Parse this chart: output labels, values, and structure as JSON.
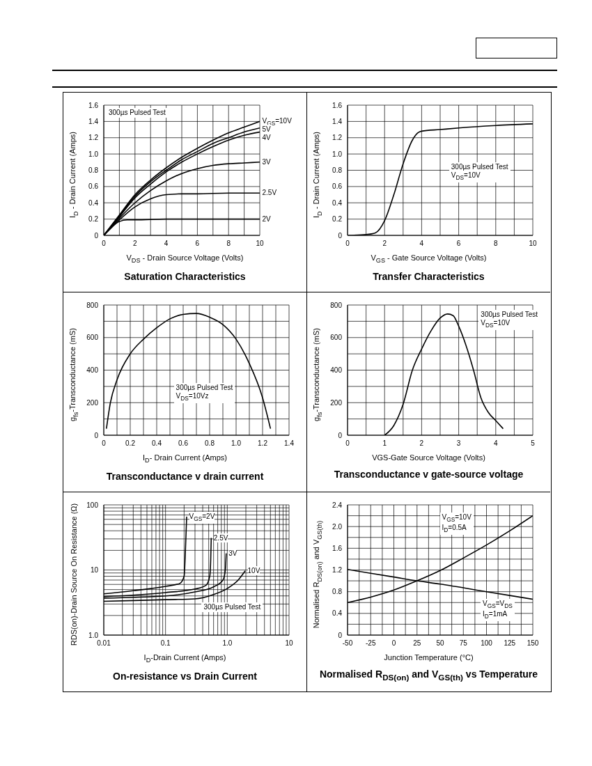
{
  "chart_data": [
    {
      "type": "line",
      "title": "Saturation Characteristics",
      "xlabel": "V$_{DS}$ - Drain Source Voltage (Volts)",
      "ylabel": "I$_{D}$ - Drain Current (Amps)",
      "annotations": [
        "300µs Pulsed Test"
      ],
      "grid": true,
      "xlim": [
        0,
        10
      ],
      "xticks": [
        0,
        {
          "value": 1,
          "label": null
        },
        2,
        {
          "value": 3,
          "label": null
        },
        4,
        {
          "value": 5,
          "label": null
        },
        6,
        {
          "value": 7,
          "label": null
        },
        8,
        {
          "value": 9,
          "label": null
        },
        10
      ],
      "ylim": [
        0,
        1.6
      ],
      "yticks": [
        0,
        0.2,
        0.4,
        0.6,
        0.8,
        {
          "value": 1,
          "label": "1.0"
        },
        1.2,
        1.4,
        1.6
      ],
      "series": [
        {
          "name": "V$_{GS}$=10V",
          "color": "#000000",
          "x": [
            0,
            1,
            2,
            3,
            4,
            5,
            6,
            7,
            8,
            9,
            10
          ],
          "values": [
            0,
            0.25,
            0.5,
            0.68,
            0.83,
            0.96,
            1.07,
            1.17,
            1.26,
            1.33,
            1.4
          ]
        },
        {
          "name": "5V",
          "color": "#000000",
          "x": [
            0,
            1,
            2,
            3,
            4,
            5,
            6,
            7,
            8,
            9,
            10
          ],
          "values": [
            0,
            0.24,
            0.48,
            0.66,
            0.8,
            0.93,
            1.03,
            1.13,
            1.2,
            1.27,
            1.32
          ]
        },
        {
          "name": "4V",
          "color": "#000000",
          "x": [
            0,
            1,
            2,
            3,
            4,
            5,
            6,
            7,
            8,
            9,
            10
          ],
          "values": [
            0,
            0.23,
            0.46,
            0.63,
            0.78,
            0.9,
            1.0,
            1.09,
            1.17,
            1.23,
            1.27
          ]
        },
        {
          "name": "3V",
          "color": "#000000",
          "x": [
            0,
            1,
            2,
            3,
            4,
            5,
            6,
            7,
            8,
            9,
            10
          ],
          "values": [
            0,
            0.21,
            0.4,
            0.55,
            0.67,
            0.76,
            0.82,
            0.86,
            0.88,
            0.89,
            0.9
          ]
        },
        {
          "name": "2.5V",
          "color": "#000000",
          "x": [
            0,
            1,
            2,
            3,
            4,
            5,
            6,
            8,
            10
          ],
          "values": [
            0,
            0.19,
            0.35,
            0.45,
            0.5,
            0.51,
            0.51,
            0.52,
            0.52
          ]
        },
        {
          "name": "2V",
          "color": "#000000",
          "x": [
            0,
            0.5,
            1,
            1.5,
            2,
            4,
            10
          ],
          "values": [
            0,
            0.1,
            0.17,
            0.19,
            0.19,
            0.2,
            0.2
          ]
        }
      ]
    },
    {
      "type": "line",
      "title": "Transfer Characteristics",
      "xlabel": "V$_{GS}$ - Gate Source Voltage (Volts)",
      "ylabel": "I$_{D}$ - Drain Current (Amps)",
      "annotations": [
        "300µs Pulsed Test",
        "V$_{DS}$=10V"
      ],
      "grid": true,
      "xlim": [
        0,
        10
      ],
      "xticks": [
        0,
        {
          "value": 1,
          "label": null
        },
        2,
        {
          "value": 3,
          "label": null
        },
        4,
        {
          "value": 5,
          "label": null
        },
        6,
        {
          "value": 7,
          "label": null
        },
        8,
        {
          "value": 9,
          "label": null
        },
        10
      ],
      "ylim": [
        0,
        1.6
      ],
      "yticks": [
        0,
        0.2,
        0.4,
        0.6,
        0.8,
        {
          "value": 1,
          "label": "1.0"
        },
        1.2,
        1.4,
        1.6
      ],
      "series": [
        {
          "color": "#000000",
          "x": [
            0,
            1,
            1.5,
            2,
            2.5,
            3,
            3.5,
            3.8,
            4,
            5,
            6,
            8,
            10
          ],
          "values": [
            0,
            0.01,
            0.03,
            0.18,
            0.5,
            0.88,
            1.17,
            1.26,
            1.28,
            1.3,
            1.32,
            1.35,
            1.37
          ]
        }
      ]
    },
    {
      "type": "line",
      "title": "Transconductance v drain current",
      "xlabel": "I$_{D}$- Drain Current (Amps)",
      "ylabel": "g$_{fs}$-Transconductance (mS)",
      "annotations": [
        "300µs Pulsed Test",
        "V$_{DS}$=10Vz"
      ],
      "grid": true,
      "xlim": [
        0,
        1.4
      ],
      "xticks": [
        0,
        {
          "value": 0.1,
          "label": null
        },
        0.2,
        {
          "value": 0.3,
          "label": null
        },
        0.4,
        {
          "value": 0.5,
          "label": null
        },
        0.6,
        {
          "value": 0.7,
          "label": null
        },
        0.8,
        {
          "value": 0.9,
          "label": null
        },
        {
          "value": 1,
          "label": "1.0"
        },
        {
          "value": 1.1,
          "label": null
        },
        1.2,
        {
          "value": 1.3,
          "label": null
        },
        1.4
      ],
      "ylim": [
        0,
        800
      ],
      "yticks": [
        0,
        {
          "value": 100,
          "label": null
        },
        200,
        {
          "value": 300,
          "label": null
        },
        400,
        {
          "value": 500,
          "label": null
        },
        600,
        {
          "value": 700,
          "label": null
        },
        800
      ],
      "series": [
        {
          "color": "#000000",
          "x": [
            0.02,
            0.05,
            0.1,
            0.2,
            0.3,
            0.4,
            0.5,
            0.6,
            0.7,
            0.8,
            0.9,
            1.0,
            1.1,
            1.2,
            1.26
          ],
          "values": [
            40,
            200,
            340,
            500,
            590,
            660,
            715,
            742,
            748,
            725,
            680,
            590,
            440,
            230,
            40
          ]
        }
      ]
    },
    {
      "type": "line",
      "title": "Transconductance v gate-source voltage",
      "xlabel": "VGS-Gate Source Voltage (Volts)",
      "ylabel": "g$_{fs}$-Transconductance (mS)",
      "annotations": [
        "300µs Pulsed Test",
        "V$_{DS}$=10V"
      ],
      "grid": true,
      "xlim": [
        0,
        5
      ],
      "xticks": [
        0,
        {
          "value": 0.5,
          "label": null
        },
        1,
        {
          "value": 1.5,
          "label": null
        },
        2,
        {
          "value": 2.5,
          "label": null
        },
        3,
        {
          "value": 3.5,
          "label": null
        },
        4,
        {
          "value": 4.5,
          "label": null
        },
        5
      ],
      "ylim": [
        0,
        800
      ],
      "yticks": [
        0,
        {
          "value": 100,
          "label": null
        },
        200,
        {
          "value": 300,
          "label": null
        },
        400,
        {
          "value": 500,
          "label": null
        },
        600,
        {
          "value": 700,
          "label": null
        },
        800
      ],
      "series": [
        {
          "color": "#000000",
          "x": [
            1,
            1.25,
            1.5,
            1.75,
            2,
            2.25,
            2.5,
            2.7,
            2.85,
            3,
            3.2,
            3.4,
            3.6,
            3.8,
            4,
            4.2
          ],
          "values": [
            0,
            60,
            190,
            400,
            530,
            640,
            720,
            745,
            735,
            670,
            550,
            400,
            230,
            140,
            90,
            40
          ]
        }
      ]
    },
    {
      "type": "line",
      "title": "On-resistance vs Drain Current",
      "xlabel": "I$_{D}$-Drain Current (Amps)",
      "ylabel": "RDS(on)-Drain Source On Resistance  (Ω)",
      "annotations": [
        "300µs Pulsed Test"
      ],
      "grid": true,
      "log": "xy",
      "xlim": [
        0.01,
        10
      ],
      "xticks": [
        0.01,
        {
          "value": 0.02,
          "label": null
        },
        {
          "value": 0.03,
          "label": null
        },
        {
          "value": 0.04,
          "label": null
        },
        {
          "value": 0.05,
          "label": null
        },
        {
          "value": 0.06,
          "label": null
        },
        {
          "value": 0.07,
          "label": null
        },
        {
          "value": 0.08,
          "label": null
        },
        {
          "value": 0.09,
          "label": null
        },
        0.1,
        {
          "value": 0.2,
          "label": null
        },
        {
          "value": 0.3,
          "label": null
        },
        {
          "value": 0.4,
          "label": null
        },
        {
          "value": 0.5,
          "label": null
        },
        {
          "value": 0.6,
          "label": null
        },
        {
          "value": 0.7,
          "label": null
        },
        {
          "value": 0.8,
          "label": null
        },
        {
          "value": 0.9,
          "label": null
        },
        {
          "value": 1,
          "label": "1.0"
        },
        {
          "value": 2,
          "label": null
        },
        {
          "value": 3,
          "label": null
        },
        {
          "value": 4,
          "label": null
        },
        {
          "value": 5,
          "label": null
        },
        {
          "value": 6,
          "label": null
        },
        {
          "value": 7,
          "label": null
        },
        {
          "value": 8,
          "label": null
        },
        {
          "value": 9,
          "label": null
        },
        10
      ],
      "ylim": [
        1,
        100
      ],
      "yticks": [
        {
          "value": 1,
          "label": "1.0"
        },
        {
          "value": 2,
          "label": null
        },
        {
          "value": 3,
          "label": null
        },
        {
          "value": 4,
          "label": null
        },
        {
          "value": 5,
          "label": null
        },
        {
          "value": 6,
          "label": null
        },
        {
          "value": 7,
          "label": null
        },
        {
          "value": 8,
          "label": null
        },
        {
          "value": 9,
          "label": null
        },
        10,
        {
          "value": 20,
          "label": null
        },
        {
          "value": 30,
          "label": null
        },
        {
          "value": 40,
          "label": null
        },
        {
          "value": 50,
          "label": null
        },
        {
          "value": 60,
          "label": null
        },
        {
          "value": 70,
          "label": null
        },
        {
          "value": 80,
          "label": null
        },
        {
          "value": 90,
          "label": null
        },
        100
      ],
      "series": [
        {
          "name": "V$_{GS}$=2V",
          "color": "#000000",
          "x": [
            0.01,
            0.03,
            0.1,
            0.17,
            0.2,
            0.21,
            0.22
          ],
          "values": [
            4.3,
            4.8,
            5.6,
            6.2,
            8,
            20,
            66
          ]
        },
        {
          "name": "2.5V",
          "color": "#000000",
          "x": [
            0.01,
            0.1,
            0.3,
            0.45,
            0.52,
            0.54,
            0.55
          ],
          "values": [
            3.9,
            4.5,
            5.1,
            5.8,
            8,
            15,
            31
          ]
        },
        {
          "name": "3V",
          "color": "#000000",
          "x": [
            0.01,
            0.1,
            0.3,
            0.6,
            0.85,
            0.93,
            0.96
          ],
          "values": [
            3.7,
            4.0,
            4.6,
            5.5,
            7,
            10,
            18
          ]
        },
        {
          "name": "10V",
          "color": "#000000",
          "x": [
            0.01,
            0.1,
            0.3,
            0.6,
            1,
            1.5,
            1.95
          ],
          "values": [
            3.3,
            3.5,
            3.6,
            4.2,
            5.2,
            7,
            9.7
          ]
        }
      ]
    },
    {
      "type": "line",
      "title": "Normalised R$_{DS(on)}$ and V$_{GS(th)}$ vs Temperature",
      "xlabel": "Junction Temperature (°C)",
      "ylabel": "Normalised R$_{DS(on)}$ and V$_{GS(th)}$",
      "annotations": [
        "V$_{GS}$=10V",
        "I$_{D}$=0.5A",
        "V$_{GS}$=V$_{DS}$",
        "I$_{D}$=1mA"
      ],
      "grid": true,
      "xlim": [
        -50,
        150
      ],
      "xticks": [
        -50,
        {
          "value": -37.5,
          "label": null
        },
        -25,
        {
          "value": -12.5,
          "label": null
        },
        0,
        {
          "value": 12.5,
          "label": null
        },
        25,
        {
          "value": 37.5,
          "label": null
        },
        50,
        {
          "value": 62.5,
          "label": null
        },
        75,
        {
          "value": 87.5,
          "label": null
        },
        100,
        {
          "value": 112.5,
          "label": null
        },
        125,
        {
          "value": 137.5,
          "label": null
        },
        150
      ],
      "ylim": [
        0,
        2.4
      ],
      "yticks": [
        0,
        {
          "value": 0.2,
          "label": null
        },
        0.4,
        {
          "value": 0.6,
          "label": null
        },
        0.8,
        {
          "value": 1,
          "label": null
        },
        1.2,
        {
          "value": 1.4,
          "label": null
        },
        1.6,
        {
          "value": 1.8,
          "label": null
        },
        {
          "value": 2,
          "label": "2.0"
        },
        {
          "value": 2.2,
          "label": null
        },
        2.4
      ],
      "series": [
        {
          "color": "#000000",
          "x": [
            -50,
            -25,
            0,
            25,
            50,
            75,
            100,
            125,
            150
          ],
          "values": [
            0.6,
            0.7,
            0.83,
            1.0,
            1.19,
            1.42,
            1.66,
            1.92,
            2.2
          ]
        },
        {
          "color": "#000000",
          "x": [
            -50,
            0,
            25,
            50,
            100,
            150
          ],
          "values": [
            1.21,
            1.07,
            1.0,
            0.94,
            0.8,
            0.66
          ]
        }
      ]
    }
  ]
}
